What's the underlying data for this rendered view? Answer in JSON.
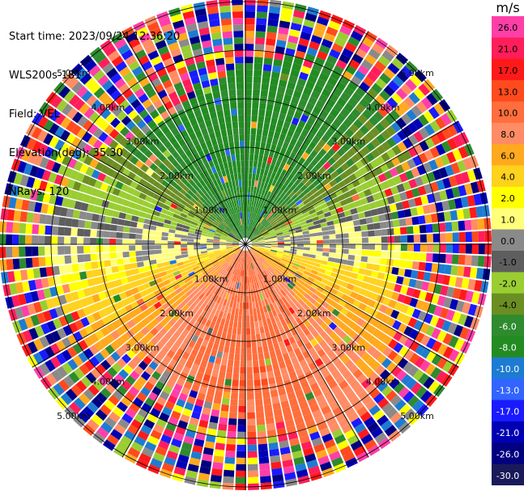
{
  "header": {
    "start_time": "Start time: 2023/09/24 12:36:20",
    "instrument": "WLS200s-181",
    "field": "Field: VEL",
    "elevation": "Elevation(deg): 35.30",
    "nrays": "NRays: 120"
  },
  "chart_data": {
    "type": "heatmap",
    "projection": "polar PPI",
    "field": "VEL",
    "nrays": 120,
    "range_rings_km": [
      1.0,
      2.0,
      3.0,
      4.0,
      5.0
    ],
    "ring_labels": [
      "1.00km",
      "2.00km",
      "3.00km",
      "4.00km",
      "5.00km"
    ],
    "colorbar": {
      "unit": "m/s",
      "tick_labels": [
        "26.0",
        "21.0",
        "17.0",
        "13.0",
        "10.0",
        "8.0",
        "6.0",
        "4.0",
        "2.0",
        "1.0",
        "0.0",
        "-1.0",
        "-2.0",
        "-4.0",
        "-6.0",
        "-8.0",
        "-10.0",
        "-13.0",
        "-17.0",
        "-21.0",
        "-26.0",
        "-30.0"
      ],
      "colors": [
        "#ff3fa8",
        "#ff1e5a",
        "#ff1a1a",
        "#ff4a1e",
        "#ff6e3c",
        "#ff8c64",
        "#ffa91e",
        "#ffd21e",
        "#ffff00",
        "#ffff7a",
        "#8a8a8a",
        "#5e5e5e",
        "#9acd32",
        "#6b8e23",
        "#2e8b2e",
        "#228b22",
        "#1e7bd2",
        "#3264ff",
        "#1a1aff",
        "#0000b4",
        "#000080",
        "#1a1a5a"
      ]
    }
  }
}
